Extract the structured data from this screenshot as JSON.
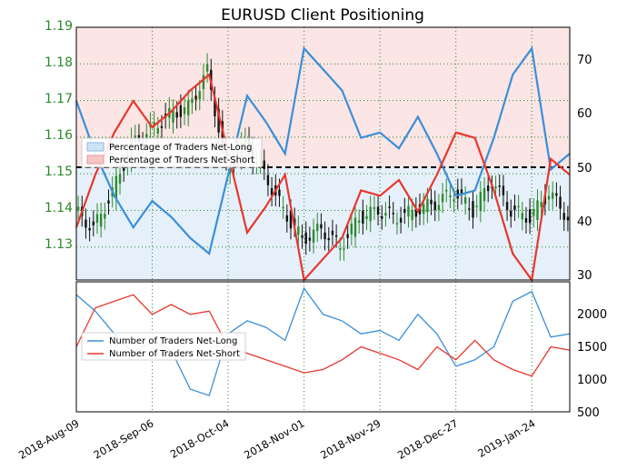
{
  "title": "EURUSD Client Positioning",
  "colors": {
    "long": "#3a8fd8",
    "short": "#e8372c",
    "up_candle": "#2e8b2e",
    "down_candle": "#111111",
    "grid": "#2a8a2a",
    "left_axis_text": "#2a8a2a"
  },
  "top_legend": [
    "Percentage of Traders Net-Long",
    "Percentage of Traders Net-Short"
  ],
  "bottom_legend": [
    "Number of Traders Net-Long",
    "Number of Traders Net-Short"
  ],
  "x_tick_labels": [
    "2018-Aug-09",
    "2018-Sep-06",
    "2018-Oct-04",
    "2018-Nov-01",
    "2018-Nov-29",
    "2018-Dec-27",
    "2019-Jan-24"
  ],
  "left_ticks": [
    "1.19",
    "1.18",
    "1.17",
    "1.16",
    "1.15",
    "1.14",
    "1.13"
  ],
  "right_ticks_top": [
    "70",
    "60",
    "50",
    "40",
    "30"
  ],
  "right_ticks_bottom": [
    "2000",
    "1500",
    "1000",
    "500"
  ],
  "chart_data": [
    {
      "type": "line",
      "title": "EURUSD Client Positioning",
      "description_axes": {
        "x_start": "2018-Aug-09",
        "x_end": "2019-Feb-07",
        "left_ylim": [
          1.121,
          1.19
        ],
        "right_ylim": [
          28,
          76
        ]
      },
      "x": [
        "2018-Aug-09",
        "2018-Aug-16",
        "2018-Aug-23",
        "2018-Aug-30",
        "2018-Sep-06",
        "2018-Sep-13",
        "2018-Sep-20",
        "2018-Sep-27",
        "2018-Oct-04",
        "2018-Oct-11",
        "2018-Oct-18",
        "2018-Oct-25",
        "2018-Nov-01",
        "2018-Nov-08",
        "2018-Nov-15",
        "2018-Nov-22",
        "2018-Nov-29",
        "2018-Dec-06",
        "2018-Dec-13",
        "2018-Dec-20",
        "2018-Dec-27",
        "2019-Jan-03",
        "2019-Jan-10",
        "2019-Jan-17",
        "2019-Jan-24",
        "2019-Jan-31",
        "2019-Feb-07"
      ],
      "series": [
        {
          "name": "Percentage of Traders Net-Long",
          "axis": "right",
          "values": [
            62,
            52,
            44,
            38,
            43,
            40,
            36,
            33,
            48,
            63,
            58,
            52,
            72,
            68,
            64,
            55,
            56,
            53,
            59,
            52,
            44,
            45,
            55,
            67,
            72,
            49,
            52
          ]
        },
        {
          "name": "Percentage of Traders Net-Short",
          "axis": "right",
          "values": [
            38,
            48,
            56,
            62,
            57,
            60,
            64,
            67,
            52,
            37,
            42,
            48,
            28,
            32,
            36,
            45,
            44,
            47,
            41,
            48,
            56,
            55,
            45,
            33,
            28,
            51,
            48
          ]
        },
        {
          "name": "EURUSD",
          "axis": "left",
          "type": "candlestick",
          "values": [
            1.14,
            1.135,
            1.145,
            1.158,
            1.162,
            1.166,
            1.168,
            1.178,
            1.152,
            1.158,
            1.15,
            1.14,
            1.132,
            1.135,
            1.13,
            1.138,
            1.14,
            1.138,
            1.14,
            1.142,
            1.145,
            1.14,
            1.148,
            1.14,
            1.138,
            1.145,
            1.138
          ]
        }
      ]
    },
    {
      "type": "line",
      "x": [
        "2018-Aug-09",
        "2018-Aug-16",
        "2018-Aug-23",
        "2018-Aug-30",
        "2018-Sep-06",
        "2018-Sep-13",
        "2018-Sep-20",
        "2018-Sep-27",
        "2018-Oct-04",
        "2018-Oct-11",
        "2018-Oct-18",
        "2018-Oct-25",
        "2018-Nov-01",
        "2018-Nov-08",
        "2018-Nov-15",
        "2018-Nov-22",
        "2018-Nov-29",
        "2018-Dec-06",
        "2018-Dec-13",
        "2018-Dec-20",
        "2018-Dec-27",
        "2019-Jan-03",
        "2019-Jan-10",
        "2019-Jan-17",
        "2019-Jan-24",
        "2019-Jan-31",
        "2019-Feb-07"
      ],
      "ylim": [
        500,
        2500
      ],
      "series": [
        {
          "name": "Number of Traders Net-Long",
          "values": [
            2300,
            2050,
            1700,
            1400,
            1600,
            1450,
            850,
            750,
            1700,
            1900,
            1800,
            1600,
            2400,
            2000,
            1900,
            1700,
            1750,
            1600,
            2000,
            1700,
            1200,
            1300,
            1500,
            2200,
            2350,
            1650,
            1700
          ]
        },
        {
          "name": "Number of Traders Net-Short",
          "values": [
            1500,
            2100,
            2200,
            2300,
            2000,
            2150,
            2000,
            2050,
            1500,
            1400,
            1300,
            1200,
            1100,
            1150,
            1300,
            1500,
            1400,
            1300,
            1150,
            1500,
            1300,
            1600,
            1300,
            1150,
            1050,
            1500,
            1450
          ]
        }
      ]
    }
  ]
}
